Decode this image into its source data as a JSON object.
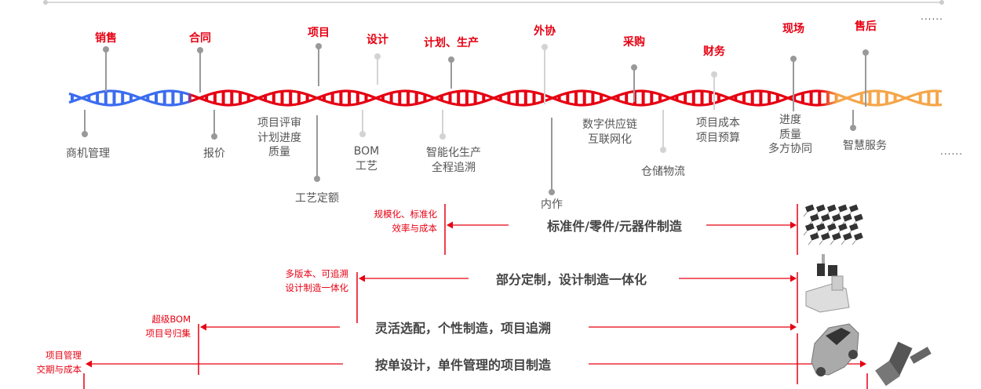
{
  "colors": {
    "red": "#e60012",
    "blue": "#3b6cf0",
    "orange": "#f5a64a",
    "pin_dark": "#999999",
    "pin_light": "#d3d3d3",
    "text": "#555555"
  },
  "top_stages": [
    {
      "label": "销售",
      "tone": "dark"
    },
    {
      "label": "合同",
      "tone": "dark"
    },
    {
      "label": "项目",
      "tone": "dark"
    },
    {
      "label": "设计",
      "tone": "light"
    },
    {
      "label": "计划、生产",
      "tone": "dark"
    },
    {
      "label": "外协",
      "tone": "light"
    },
    {
      "label": "采购",
      "tone": "dark"
    },
    {
      "label": "财务",
      "tone": "light"
    },
    {
      "label": "现场",
      "tone": "dark"
    },
    {
      "label": "售后",
      "tone": "dark"
    }
  ],
  "bottom_items": [
    {
      "lines": [
        "商机管理"
      ],
      "tone": "dark"
    },
    {
      "lines": [
        "报价"
      ],
      "tone": "dark"
    },
    {
      "lines": [
        "项目评审",
        "计划进度",
        "质量"
      ],
      "tone": "none"
    },
    {
      "lines": [
        "工艺定额"
      ],
      "tone": "dark"
    },
    {
      "lines": [
        "BOM",
        "工艺"
      ],
      "tone": "light"
    },
    {
      "lines": [
        "智能化生产",
        "全程追溯"
      ],
      "tone": "light"
    },
    {
      "lines": [
        "内作"
      ],
      "tone": "dark"
    },
    {
      "lines": [
        "数字供应链",
        "互联网化"
      ],
      "tone": "none"
    },
    {
      "lines": [
        "仓储物流"
      ],
      "tone": "light"
    },
    {
      "lines": [
        "项目成本",
        "项目预算"
      ],
      "tone": "none"
    },
    {
      "lines": [
        "进度",
        "质量",
        "多方协同"
      ],
      "tone": "none"
    },
    {
      "lines": [
        "智慧服务"
      ],
      "tone": "dark"
    }
  ],
  "ellipsis": "......",
  "rows": [
    {
      "title": "标准件/零件/元器件制造",
      "note": [
        "规模化、标准化",
        "效率与成本"
      ],
      "image": "electronic-components"
    },
    {
      "title": "部分定制，设计制造一体化",
      "note": [
        "多版本、可追溯",
        "设计制造一体化"
      ],
      "image": "cnc-machine"
    },
    {
      "title": "灵活选配，个性制造，项目追溯",
      "note": [
        "超级BOM",
        "项目号归集"
      ],
      "image": "car"
    },
    {
      "title": "按单设计，单件管理的项目制造",
      "note": [
        "项目管理",
        "交期与成本"
      ],
      "image": "satellite"
    }
  ]
}
